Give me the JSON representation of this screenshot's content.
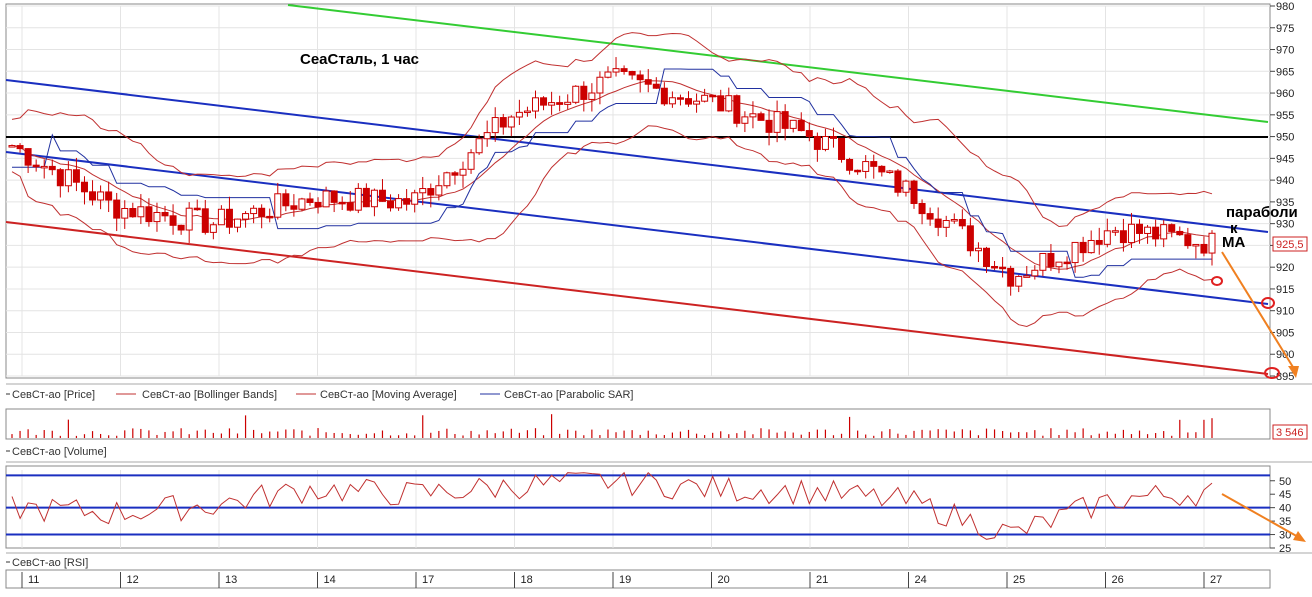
{
  "chart_title": "СеаСталь,  1 час",
  "annotations": {
    "parabolic": "параболи",
    "k": "к",
    "ma": "МА"
  },
  "price_panel": {
    "ylim": [
      895,
      980
    ],
    "y_ticks": [
      895,
      900,
      905,
      910,
      915,
      920,
      925,
      930,
      935,
      940,
      945,
      950,
      955,
      960,
      965,
      970,
      975,
      980
    ],
    "last_price_label": "925,5",
    "legend": [
      "СевСт-ао [Price]",
      "СевСт-ао [Bollinger Bands]",
      "СевСт-ао [Moving Average]",
      "СевСт-ао [Parabolic SAR]"
    ]
  },
  "volume_panel": {
    "last_value_label": "3 546",
    "legend": "СевСт-ао [Volume]"
  },
  "rsi_panel": {
    "ylim": [
      25,
      54
    ],
    "y_ticks": [
      25,
      30,
      35,
      40,
      45,
      50
    ],
    "levels": [
      30,
      40,
      52
    ],
    "legend": "СевСт-ао [RSI]"
  },
  "x_labels": [
    "11",
    "12",
    "13",
    "14",
    "17",
    "18",
    "19",
    "20",
    "21",
    "24",
    "25",
    "26",
    "27"
  ],
  "colors": {
    "candle_up": "#cc0000",
    "bb": "#c03030",
    "sar": "#2030a0",
    "channel_blue": "#1a2fc0",
    "channel_red": "#cc2222",
    "green_line": "#33cc33",
    "arrow": "#f08020"
  },
  "chart_data": {
    "type": "line",
    "title": "СеаСталь,  1 час",
    "x": [
      "11",
      "12",
      "13",
      "14",
      "17",
      "18",
      "19",
      "20",
      "21",
      "24",
      "25",
      "26",
      "27"
    ],
    "series": [
      {
        "name": "СевСт-ао [Price]",
        "values": [
          948,
          934,
          930,
          936,
          935,
          955,
          963,
          958,
          950,
          937,
          918,
          929,
          925.5
        ]
      }
    ],
    "ylim": [
      895,
      980
    ],
    "rsi": {
      "ylim": [
        25,
        54
      ],
      "values": [
        40,
        38,
        41,
        47,
        45,
        48,
        50,
        47,
        46,
        42,
        30,
        43,
        46
      ]
    }
  }
}
